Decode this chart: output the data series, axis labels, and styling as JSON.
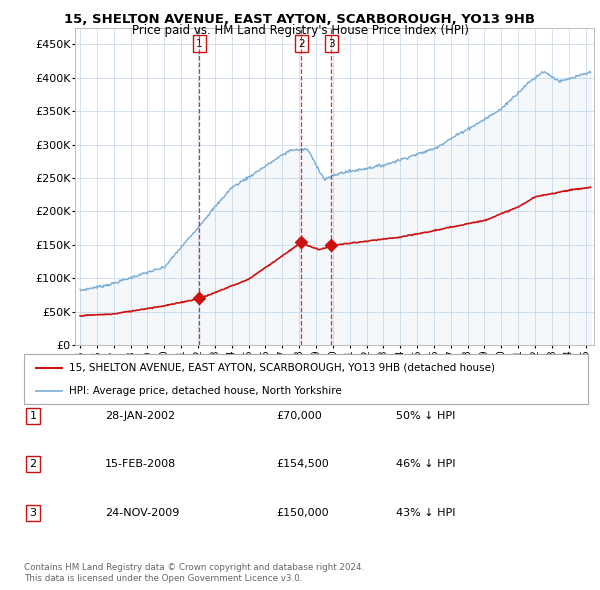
{
  "title": "15, SHELTON AVENUE, EAST AYTON, SCARBOROUGH, YO13 9HB",
  "subtitle": "Price paid vs. HM Land Registry's House Price Index (HPI)",
  "ylabel_ticks": [
    "£0",
    "£50K",
    "£100K",
    "£150K",
    "£200K",
    "£250K",
    "£300K",
    "£350K",
    "£400K",
    "£450K"
  ],
  "ytick_values": [
    0,
    50000,
    100000,
    150000,
    200000,
    250000,
    300000,
    350000,
    400000,
    450000
  ],
  "ylim": [
    0,
    475000
  ],
  "xlim_start": 1994.7,
  "xlim_end": 2025.5,
  "xtick_years": [
    1995,
    1996,
    1997,
    1998,
    1999,
    2000,
    2001,
    2002,
    2003,
    2004,
    2005,
    2006,
    2007,
    2008,
    2009,
    2010,
    2011,
    2012,
    2013,
    2014,
    2015,
    2016,
    2017,
    2018,
    2019,
    2020,
    2021,
    2022,
    2023,
    2024,
    2025
  ],
  "hpi_color": "#7aadd4",
  "price_color": "#cc1111",
  "vline_color": "#cc1111",
  "transaction_dates": [
    2002.08,
    2008.12,
    2009.9
  ],
  "transaction_prices": [
    70000,
    154500,
    150000
  ],
  "transaction_labels": [
    "1",
    "2",
    "3"
  ],
  "legend_line1": "15, SHELTON AVENUE, EAST AYTON, SCARBOROUGH, YO13 9HB (detached house)",
  "legend_line2": "HPI: Average price, detached house, North Yorkshire",
  "table_rows": [
    [
      "1",
      "28-JAN-2002",
      "£70,000",
      "50% ↓ HPI"
    ],
    [
      "2",
      "15-FEB-2008",
      "£154,500",
      "46% ↓ HPI"
    ],
    [
      "3",
      "24-NOV-2009",
      "£150,000",
      "43% ↓ HPI"
    ]
  ],
  "footnote": "Contains HM Land Registry data © Crown copyright and database right 2024.\nThis data is licensed under the Open Government Licence v3.0.",
  "background_color": "#ffffff",
  "grid_color": "#ccddee"
}
